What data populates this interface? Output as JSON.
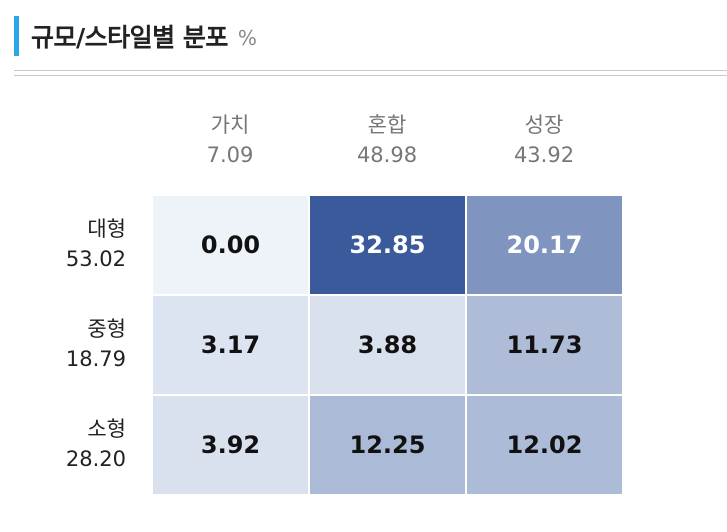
{
  "header": {
    "title": "규모/스타일별 분포",
    "unit": "%"
  },
  "chart_data": {
    "type": "heatmap",
    "columns": [
      {
        "label": "가치",
        "total": "7.09"
      },
      {
        "label": "혼합",
        "total": "48.98"
      },
      {
        "label": "성장",
        "total": "43.92"
      }
    ],
    "rows": [
      {
        "label": "대형",
        "total": "53.02",
        "values": [
          "0.00",
          "32.85",
          "20.17"
        ]
      },
      {
        "label": "중형",
        "total": "18.79",
        "values": [
          "3.17",
          "3.88",
          "11.73"
        ]
      },
      {
        "label": "소형",
        "total": "28.20",
        "values": [
          "3.92",
          "12.25",
          "12.02"
        ]
      }
    ],
    "color_scale": {
      "low": "#eef3fa",
      "high": "#3a5a9c"
    }
  },
  "colors": {
    "accent": "#2aa7e8"
  }
}
